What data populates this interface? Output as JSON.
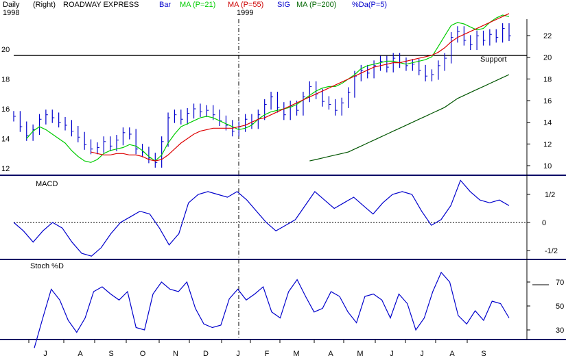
{
  "header": {
    "period": "Daily",
    "year_left": "1998",
    "scale_side": "(Right)",
    "symbol": "ROADWAY EXPRESS",
    "year_mid": "1999",
    "legend": [
      {
        "text": "Bar",
        "color": "#0000cc"
      },
      {
        "text": "MA (P=21)",
        "color": "#00cc00"
      },
      {
        "text": "MA (P=55)",
        "color": "#cc0000"
      },
      {
        "text": "SIG",
        "color": "#0000cc"
      },
      {
        "text": "MA (P=200)",
        "color": "#006600"
      },
      {
        "text": "%Da(P=5)",
        "color": "#0000cc"
      }
    ]
  },
  "chart_data": [
    {
      "type": "line",
      "panel": "price",
      "left_ticks": [
        "20",
        "18",
        "16",
        "14",
        "12"
      ],
      "right_ticks": [
        "22",
        "20",
        "18",
        "16",
        "14",
        "12",
        "10"
      ],
      "support_label": "Support",
      "support_level": 19.6,
      "months": [
        "J",
        "A",
        "S",
        "O",
        "N",
        "D",
        "J",
        "F",
        "M",
        "A",
        "M",
        "J",
        "J",
        "A",
        "S"
      ],
      "series": [
        {
          "name": "Bar",
          "color": "#0000cc",
          "style": "bars",
          "values": [
            15.5,
            14.8,
            14.2,
            14.6,
            15.3,
            15.6,
            15.4,
            15.1,
            14.9,
            14.5,
            14.1,
            13.6,
            13.3,
            13.4,
            13.8,
            13.5,
            13.9,
            14.4,
            14.3,
            13.3,
            13.1,
            12.7,
            12.4,
            13.8,
            15.4,
            15.6,
            15.3,
            15.7,
            16.0,
            15.8,
            15.9,
            15.6,
            15.2,
            14.9,
            14.5,
            14.8,
            15.3,
            15.0,
            15.6,
            16.3,
            16.8,
            16.1,
            15.6,
            16.2,
            15.9,
            16.8,
            17.5,
            17.0,
            16.5,
            16.3,
            15.9,
            16.4,
            17.1,
            18.2,
            18.6,
            18.4,
            18.9,
            19.2,
            18.8,
            19.4,
            19.1,
            18.9,
            19.0,
            18.6,
            18.2,
            18.3,
            18.9,
            19.4,
            20.8,
            21.2,
            20.6,
            20.3,
            20.9,
            20.6,
            21.0,
            20.8,
            21.4,
            20.9
          ]
        },
        {
          "name": "MA (P=21)",
          "color": "#00cc00",
          "values": [
            null,
            null,
            14.0,
            14.5,
            14.8,
            14.6,
            14.3,
            14.0,
            13.7,
            13.2,
            12.8,
            12.5,
            12.4,
            12.6,
            13.0,
            13.2,
            13.3,
            13.4,
            13.6,
            13.5,
            13.2,
            12.8,
            12.5,
            12.9,
            13.7,
            14.3,
            14.8,
            15.0,
            15.2,
            15.4,
            15.5,
            15.4,
            15.2,
            15.0,
            14.8,
            14.6,
            14.7,
            14.9,
            15.3,
            15.6,
            15.8,
            15.9,
            16.0,
            16.1,
            16.3,
            16.6,
            16.9,
            17.2,
            17.4,
            17.5,
            17.5,
            17.7,
            18.0,
            18.3,
            18.7,
            18.9,
            19.0,
            19.1,
            19.2,
            19.2,
            19.1,
            19.0,
            19.1,
            19.2,
            19.3,
            19.5,
            20.2,
            20.9,
            21.6,
            21.8,
            21.7,
            21.5,
            21.3,
            21.4,
            21.8,
            22.1,
            22.3,
            22.2
          ]
        },
        {
          "name": "MA (P=55)",
          "color": "#dd0000",
          "values": [
            null,
            null,
            null,
            null,
            null,
            null,
            null,
            null,
            null,
            null,
            null,
            null,
            13.1,
            13.0,
            12.9,
            12.9,
            13.0,
            13.0,
            12.9,
            12.9,
            12.8,
            12.6,
            12.5,
            12.6,
            12.9,
            13.3,
            13.7,
            14.0,
            14.3,
            14.5,
            14.6,
            14.7,
            14.7,
            14.7,
            14.7,
            14.8,
            14.9,
            15.1,
            15.3,
            15.4,
            15.6,
            15.8,
            16.0,
            16.2,
            16.4,
            16.6,
            16.8,
            17.0,
            17.2,
            17.4,
            17.6,
            17.8,
            18.0,
            18.2,
            18.4,
            18.6,
            18.8,
            18.9,
            19.0,
            19.1,
            19.1,
            19.2,
            19.3,
            19.4,
            19.5,
            19.6,
            19.8,
            20.1,
            20.5,
            20.8,
            21.0,
            21.2,
            21.4,
            21.6,
            21.8,
            22.0,
            22.2,
            22.4
          ]
        },
        {
          "name": "MA (P=200)",
          "color": "#005500",
          "values": [
            null,
            null,
            null,
            null,
            null,
            null,
            null,
            null,
            null,
            null,
            null,
            null,
            null,
            null,
            null,
            null,
            null,
            null,
            null,
            null,
            null,
            null,
            null,
            null,
            null,
            null,
            null,
            null,
            null,
            null,
            null,
            null,
            null,
            null,
            null,
            null,
            null,
            null,
            null,
            null,
            null,
            null,
            null,
            null,
            null,
            null,
            12.5,
            12.6,
            12.7,
            12.8,
            12.9,
            13.0,
            13.1,
            13.3,
            13.5,
            13.7,
            13.9,
            14.1,
            14.3,
            14.5,
            14.7,
            14.9,
            15.1,
            15.3,
            15.5,
            15.7,
            15.9,
            16.1,
            16.4,
            16.7,
            16.9,
            17.1,
            17.3,
            17.5,
            17.7,
            17.9,
            18.1,
            18.3
          ]
        }
      ]
    },
    {
      "type": "line",
      "panel": "macd",
      "title": "MACD",
      "ticks": [
        "1/2",
        "0",
        "-1/2"
      ],
      "zero_line": "dotted",
      "series": [
        {
          "name": "MACD",
          "color": "#0000cc",
          "values": [
            0.0,
            -0.15,
            -0.35,
            -0.15,
            0.0,
            -0.1,
            -0.35,
            -0.55,
            -0.6,
            -0.45,
            -0.2,
            0.0,
            0.1,
            0.2,
            0.15,
            -0.1,
            -0.4,
            -0.2,
            0.35,
            0.5,
            0.55,
            0.5,
            0.45,
            0.55,
            0.4,
            0.2,
            0.0,
            -0.15,
            -0.05,
            0.05,
            0.3,
            0.55,
            0.4,
            0.25,
            0.35,
            0.45,
            0.3,
            0.15,
            0.35,
            0.5,
            0.55,
            0.5,
            0.2,
            -0.05,
            0.05,
            0.3,
            0.75,
            0.55,
            0.4,
            0.35,
            0.4,
            0.3
          ]
        }
      ]
    },
    {
      "type": "line",
      "panel": "stoch",
      "title": "Stoch %D",
      "ticks": [
        "70",
        "50",
        "30"
      ],
      "series": [
        {
          "name": "Stoch %D",
          "color": "#0000cc",
          "values": [
            15,
            40,
            64,
            55,
            38,
            28,
            40,
            62,
            66,
            60,
            55,
            62,
            32,
            30,
            60,
            70,
            64,
            62,
            70,
            48,
            35,
            32,
            34,
            56,
            64,
            55,
            60,
            66,
            45,
            40,
            62,
            72,
            58,
            45,
            48,
            62,
            58,
            45,
            36,
            58,
            60,
            55,
            40,
            60,
            52,
            30,
            40,
            62,
            78,
            70,
            42,
            35,
            46,
            38,
            54,
            52,
            40
          ]
        }
      ]
    }
  ]
}
